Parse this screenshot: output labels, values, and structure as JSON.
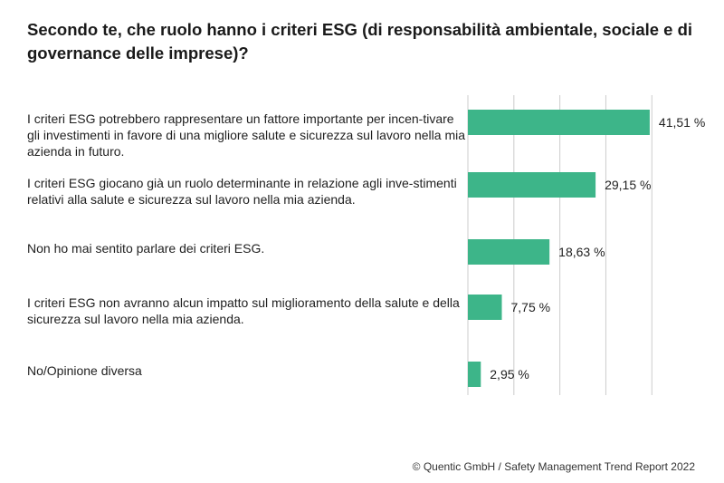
{
  "title": "Secondo te, che ruolo hanno i criteri ESG (di responsabilità ambientale, sociale e di governance delle imprese)?",
  "footer": "© Quentic GmbH / Safety Management Trend Report 2022",
  "colors": {
    "bar": "#3db589",
    "grid": "#cccccc",
    "text": "#1f1f1f"
  },
  "chart_data": {
    "type": "bar",
    "orientation": "horizontal",
    "categories": [
      "I criteri ESG potrebbero rappresentare un fattore importante per incen-tivare gli investimenti in favore di una migliore salute e sicurezza sul lavoro nella mia azienda in futuro.",
      "I criteri ESG giocano già un ruolo determinante in relazione agli inve-stimenti relativi alla salute e sicurezza sul lavoro nella mia azienda.",
      "Non ho mai sentito parlare dei criteri ESG.",
      "I criteri ESG non avranno alcun impatto sul miglioramento della salute e della sicurezza sul lavoro nella mia azienda.",
      "No/Opinione diversa"
    ],
    "values": [
      41.51,
      29.15,
      18.63,
      7.75,
      2.95
    ],
    "value_labels": [
      "41,51 %",
      "29,15 %",
      "18,63 %",
      "7,75 %",
      "2,95 %"
    ],
    "xlim": [
      0,
      50
    ],
    "grid": true
  }
}
